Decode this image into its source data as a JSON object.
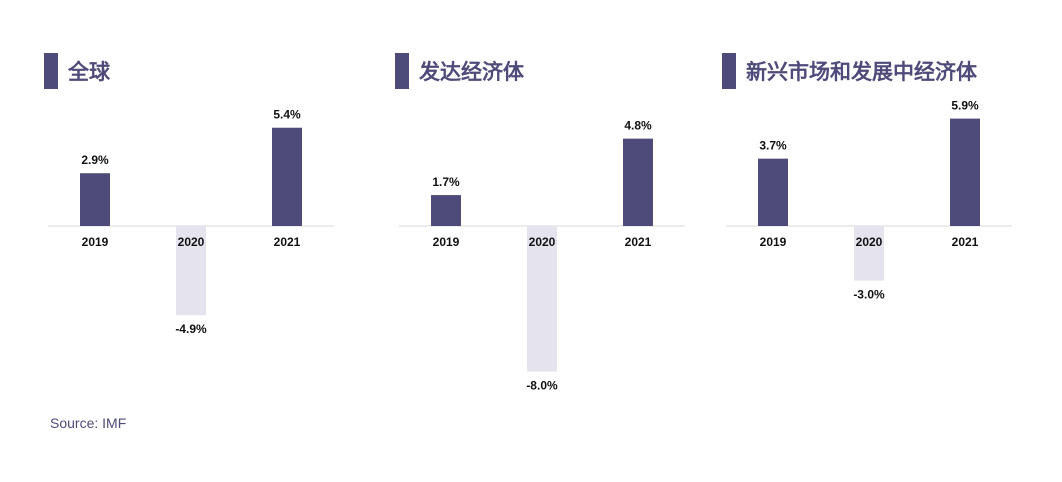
{
  "colors": {
    "positive": "#4e4b7a",
    "negative": "#e4e3ee",
    "baseline": "#d9d9d9",
    "title": "#4e4b7a"
  },
  "source": "Source: IMF",
  "chart_data": [
    {
      "type": "bar",
      "title": "全球",
      "categories": [
        "2019",
        "2020",
        "2021"
      ],
      "values": [
        2.9,
        -4.9,
        5.4
      ],
      "value_labels": [
        "2.9%",
        "-4.9%",
        "5.4%"
      ],
      "unit": "%"
    },
    {
      "type": "bar",
      "title": "发达经济体",
      "categories": [
        "2019",
        "2020",
        "2021"
      ],
      "values": [
        1.7,
        -8.0,
        4.8
      ],
      "value_labels": [
        "1.7%",
        "-8.0%",
        "4.8%"
      ],
      "unit": "%"
    },
    {
      "type": "bar",
      "title": "新兴市场和发展中经济体",
      "categories": [
        "2019",
        "2020",
        "2021"
      ],
      "values": [
        3.7,
        -3.0,
        5.9
      ],
      "value_labels": [
        "3.7%",
        "-3.0%",
        "5.9%"
      ],
      "unit": "%"
    }
  ]
}
